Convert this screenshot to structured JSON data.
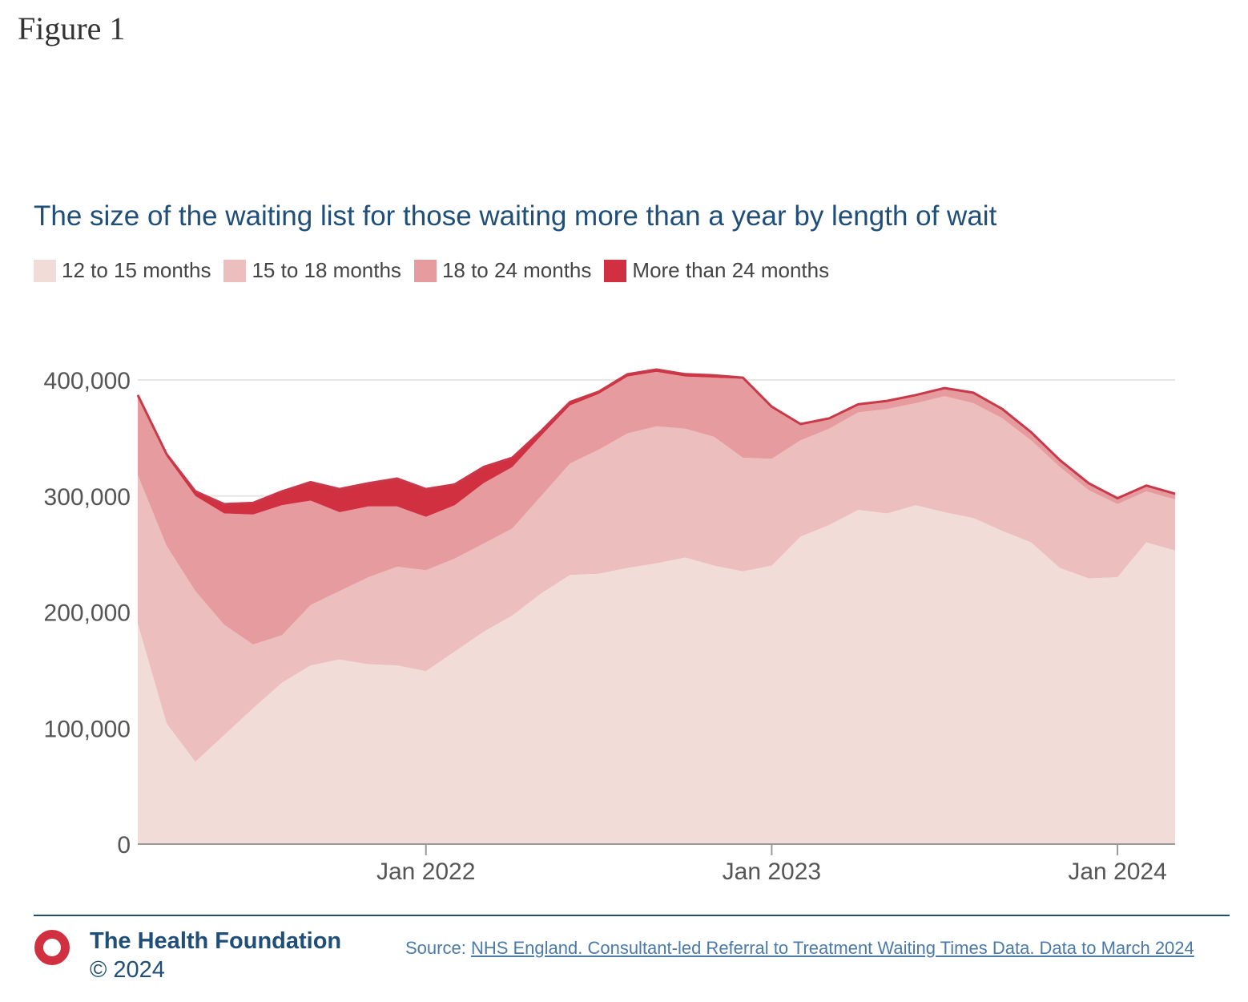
{
  "figure_label": "Figure 1",
  "chart_data": {
    "type": "area",
    "stacked": true,
    "title": "The size of the waiting list for those waiting more than a year by length of wait",
    "x": [
      "2021-03",
      "2021-04",
      "2021-05",
      "2021-06",
      "2021-07",
      "2021-08",
      "2021-09",
      "2021-10",
      "2021-11",
      "2021-12",
      "2022-01",
      "2022-02",
      "2022-03",
      "2022-04",
      "2022-05",
      "2022-06",
      "2022-07",
      "2022-08",
      "2022-09",
      "2022-10",
      "2022-11",
      "2022-12",
      "2023-01",
      "2023-02",
      "2023-03",
      "2023-04",
      "2023-05",
      "2023-06",
      "2023-07",
      "2023-08",
      "2023-09",
      "2023-10",
      "2023-11",
      "2023-12",
      "2024-01",
      "2024-02",
      "2024-03"
    ],
    "series": [
      {
        "name": "12 to 15 months",
        "color": "#f2dcd8",
        "values": [
          190000,
          104000,
          71000,
          94000,
          117000,
          139000,
          154000,
          159000,
          155000,
          154000,
          149000,
          166000,
          183000,
          197000,
          216000,
          232000,
          233000,
          238000,
          242000,
          247000,
          240000,
          235000,
          240000,
          265000,
          275000,
          288000,
          285000,
          292000,
          286000,
          281000,
          270000,
          260000,
          238000,
          229000,
          230000,
          260000,
          253000
        ]
      },
      {
        "name": "15 to 18 months",
        "color": "#ecbebd",
        "values": [
          128000,
          153000,
          147000,
          95000,
          55000,
          41000,
          52000,
          59000,
          75000,
          85000,
          87000,
          80000,
          76000,
          75000,
          84000,
          96000,
          107000,
          116000,
          118000,
          111000,
          111000,
          98000,
          92000,
          83000,
          83000,
          84000,
          90000,
          88000,
          100000,
          99000,
          97000,
          88000,
          87000,
          76000,
          63000,
          44000,
          44000
        ]
      },
      {
        "name": "18 to 24 months",
        "color": "#e69c9e",
        "values": [
          67000,
          77000,
          82000,
          96000,
          112000,
          112000,
          90000,
          68000,
          61000,
          52000,
          46000,
          46000,
          52000,
          53000,
          52000,
          50000,
          48000,
          49000,
          47000,
          45000,
          51000,
          68000,
          44000,
          13000,
          8000,
          6000,
          6000,
          6000,
          6000,
          8000,
          7000,
          6000,
          5000,
          5000,
          4000,
          4000,
          4000
        ]
      },
      {
        "name": "More than 24 months",
        "color": "#d13040",
        "values": [
          2000,
          2000,
          4000,
          8000,
          10000,
          12000,
          16000,
          20000,
          20000,
          24000,
          24000,
          18000,
          14000,
          8000,
          4000,
          3000,
          2000,
          2000,
          2000,
          2000,
          2000,
          1000,
          1000,
          1000,
          1000,
          1000,
          1000,
          1000,
          1000,
          1000,
          1000,
          1000,
          1000,
          1000,
          1000,
          1000,
          1000
        ]
      }
    ],
    "ylim": [
      0,
      400000
    ],
    "y_ticks": [
      "0",
      "100,000",
      "200,000",
      "300,000",
      "400,000"
    ],
    "x_ticks": [
      {
        "label": "Jan 2022",
        "at": "2022-01"
      },
      {
        "label": "Jan 2023",
        "at": "2023-01"
      },
      {
        "label": "Jan 2024",
        "at": "2024-01"
      }
    ],
    "grid": true,
    "legend_position": "top-left"
  },
  "footer": {
    "organisation": "The Health Foundation",
    "copyright": "© 2024",
    "source_prefix": "Source: ",
    "source_link": "NHS England. Consultant-led Referral to Treatment Waiting Times Data. Data to March 2024"
  },
  "colors": {
    "title": "#1f4e79",
    "top_line": "#c8394a",
    "logo": "#d13040",
    "grid": "#e6e6e6",
    "axis": "#999999"
  }
}
